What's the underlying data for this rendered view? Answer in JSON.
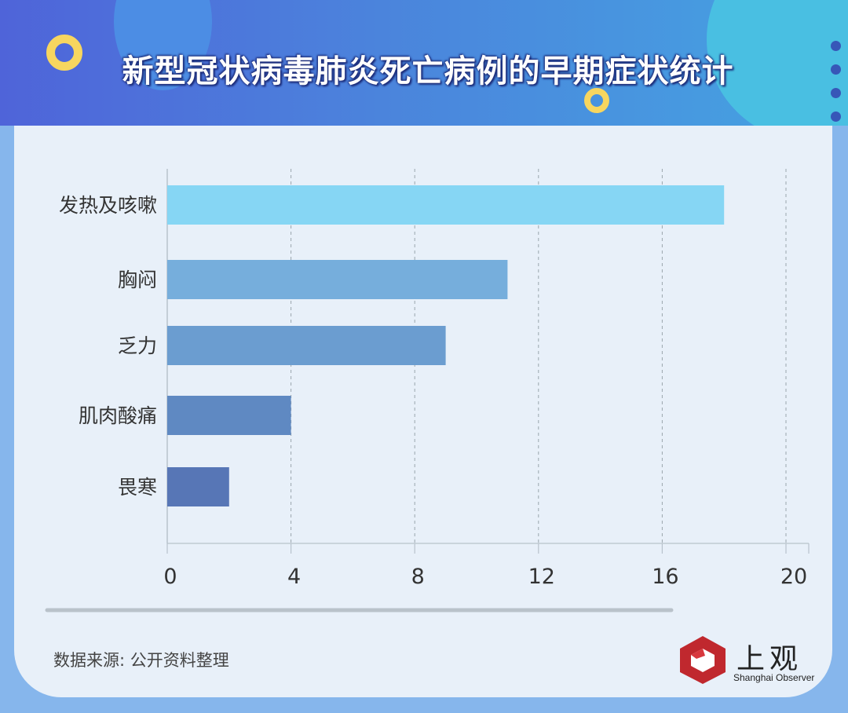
{
  "header": {
    "title": "新型冠状病毒肺炎死亡病例的早期症状统计"
  },
  "colors": {
    "bars": [
      "#86d6f4",
      "#76aedc",
      "#6b9dd0",
      "#5f89c2",
      "#5776b6"
    ],
    "header_start": "#4f64d9",
    "header_end": "#45a4e2",
    "card": "#e8f0f9"
  },
  "chart_data": {
    "type": "bar",
    "orientation": "horizontal",
    "categories": [
      "发热及咳嗽",
      "胸闷",
      "乏力",
      "肌肉酸痛",
      "畏寒"
    ],
    "values": [
      18,
      11,
      9,
      4,
      2
    ],
    "x_ticks": [
      "0",
      "4",
      "8",
      "12",
      "16",
      "20"
    ],
    "xlim": [
      0,
      20
    ],
    "grid": "vertical dashed"
  },
  "footer": {
    "source": "数据来源: 公开资料整理",
    "logo_text": "上观",
    "logo_sub": "Shanghai Observer"
  }
}
